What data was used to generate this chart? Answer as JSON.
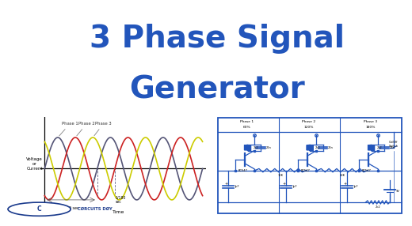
{
  "title_line1": "3 Phase Signal",
  "title_line2": "Generator",
  "title_color": "#2255bb",
  "title_fontsize": 28,
  "bg_color": "#ffffff",
  "wave_bg": "#eeeeee",
  "circuit_bg": "#f0f0f0",
  "phase_labels": [
    "Phase 1",
    "Phase 2",
    "Phase 3"
  ],
  "phase_colors": [
    "#555577",
    "#cc2222",
    "#cccc00"
  ],
  "wave_xlabel": "Time",
  "wave_ylabel": "Voltage\nor\nCurrent",
  "annotation1": "1/60 sec",
  "annotation2": "1/180\nsec",
  "circuit_phases": [
    "Phase 1\n60%",
    "Phase 2\n120%",
    "Phase 3\n180%"
  ],
  "circuit_border_color": "#2255bb",
  "circuit_line_color": "#2255bb",
  "logo_text_G": "G",
  "logo_text_main": " CØRCUITS DØY",
  "logo_color": "#1a3a8c"
}
